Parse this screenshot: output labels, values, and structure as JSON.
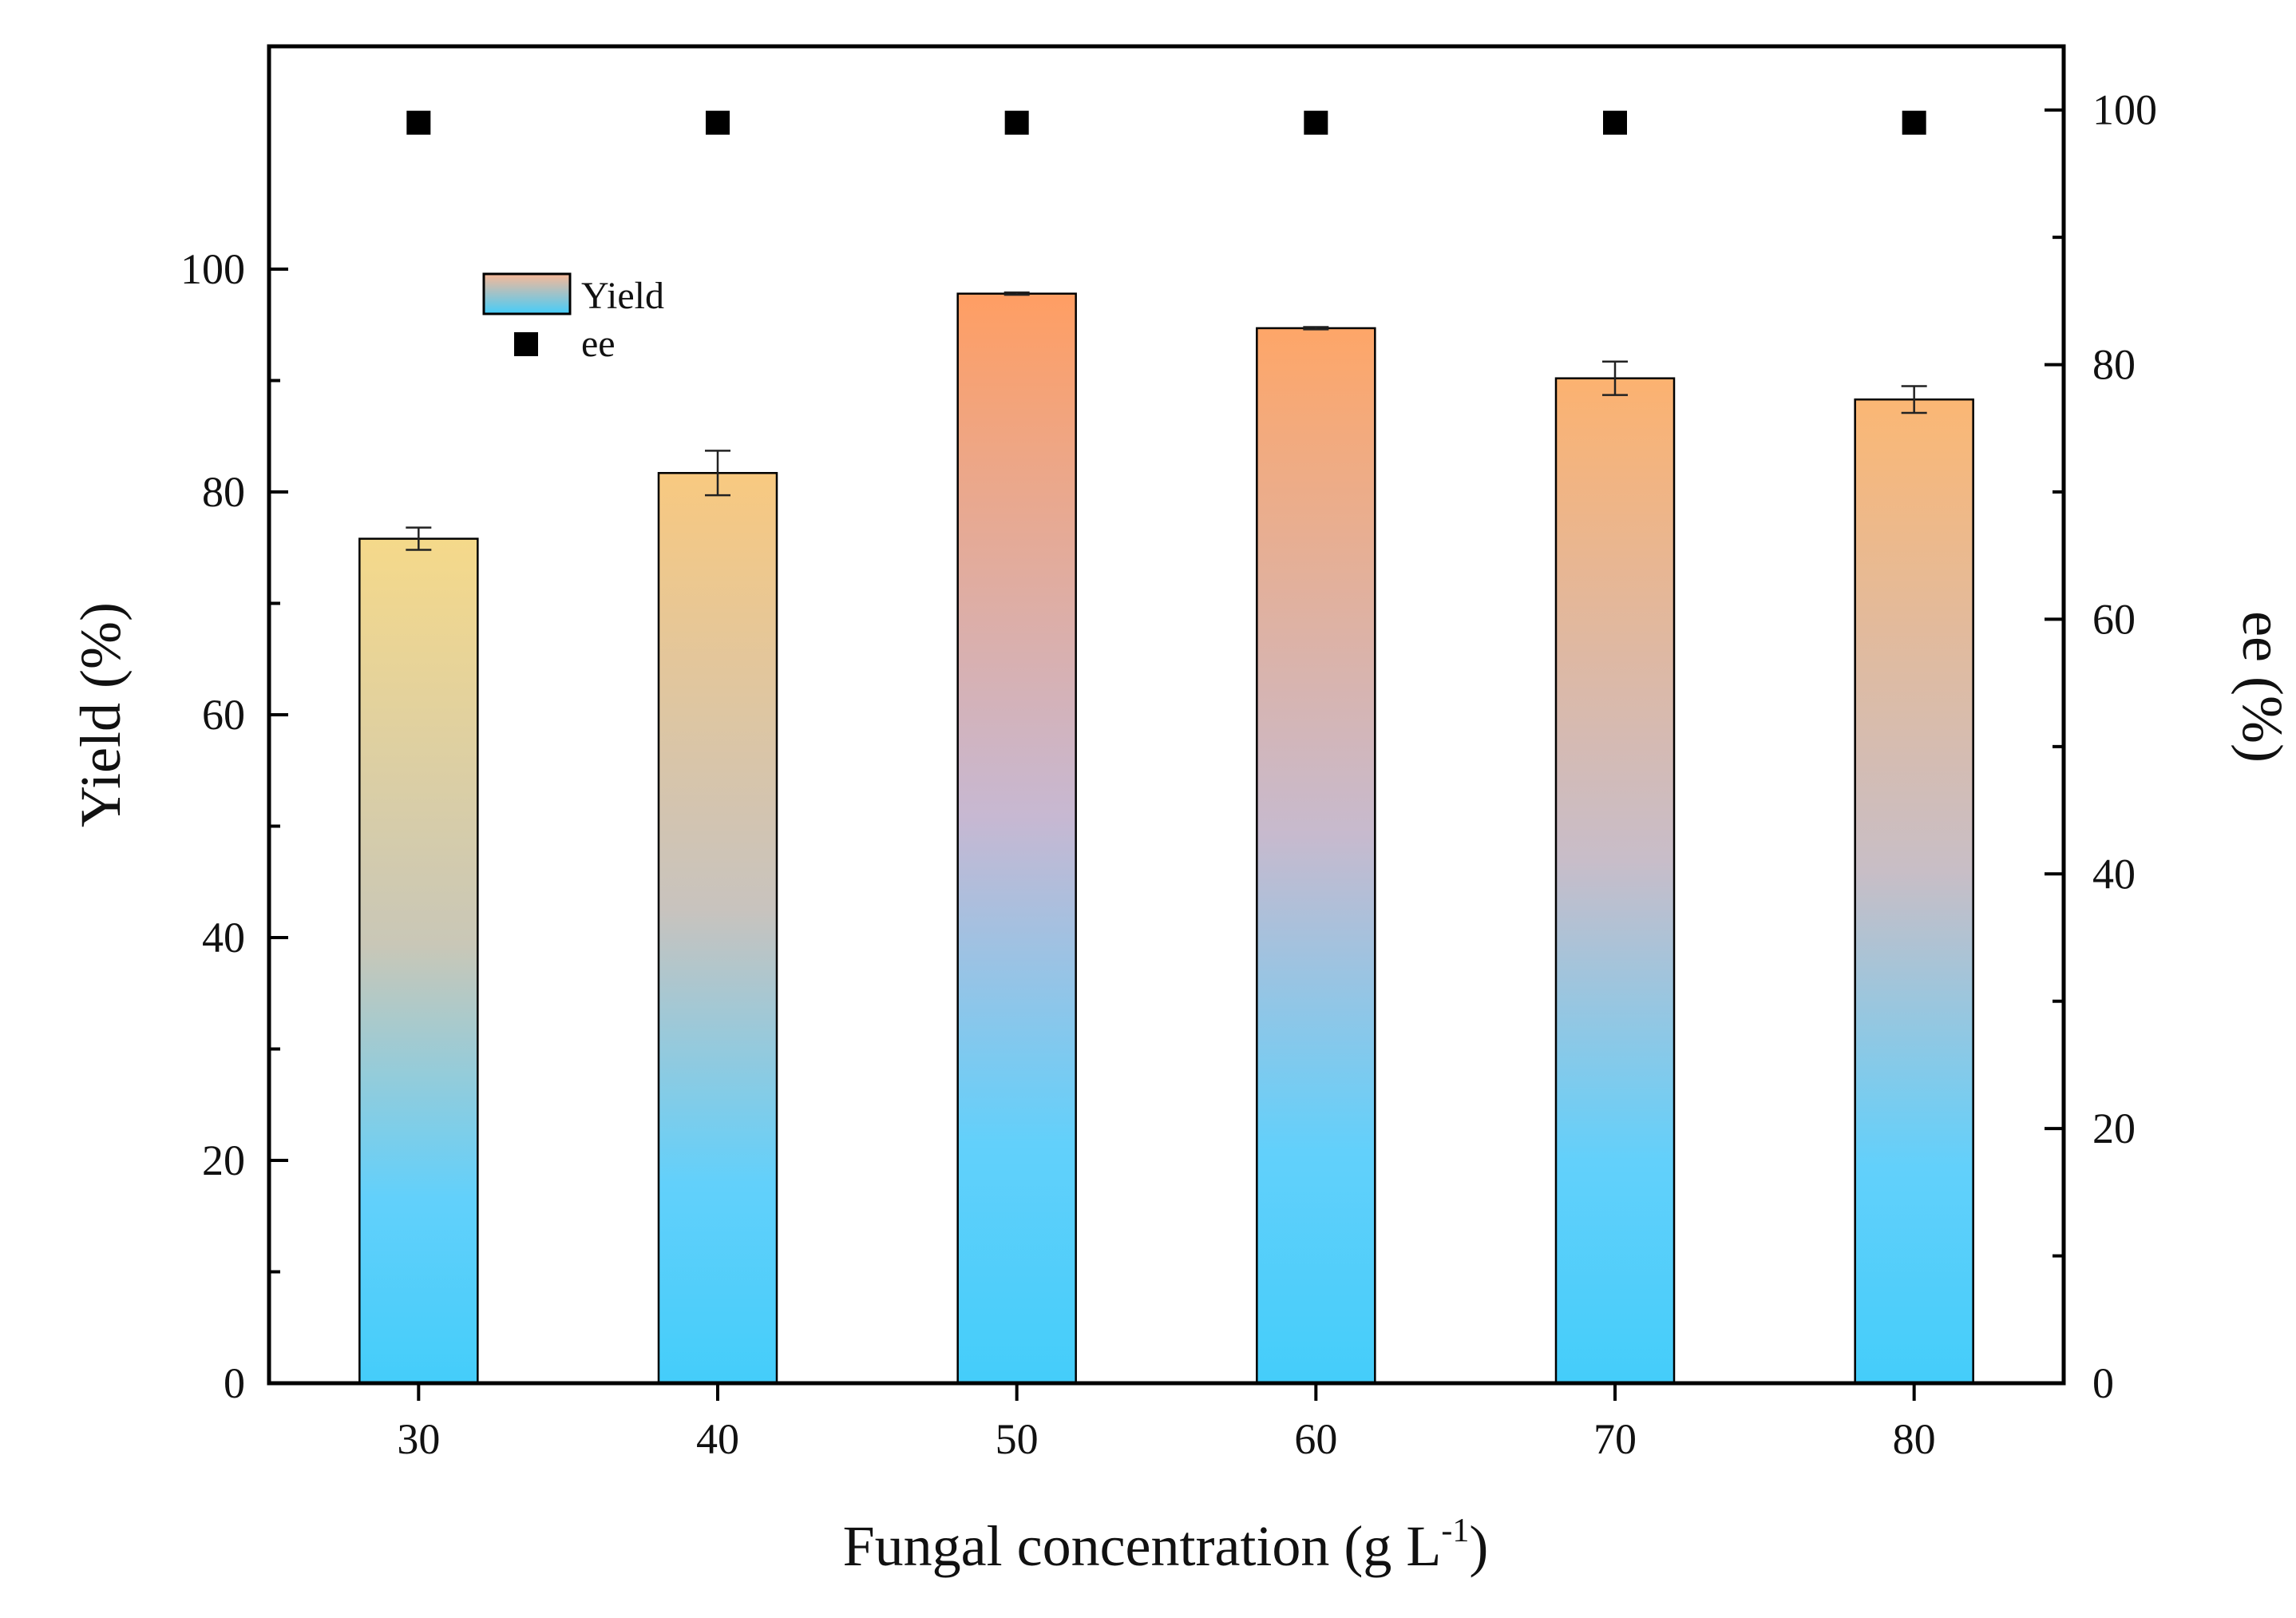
{
  "chart_data": {
    "type": "bar",
    "xlabel": "Fungal concentration (g L",
    "xlabel_superscript": "-1",
    "xlabel_suffix": ")",
    "categories": [
      "30",
      "40",
      "50",
      "60",
      "70",
      "80"
    ],
    "series": [
      {
        "name": "Yield",
        "axis": "left",
        "kind": "bar",
        "values": [
          75.8,
          81.7,
          97.8,
          94.7,
          90.2,
          88.3
        ],
        "errors": [
          1.0,
          2.0,
          0.1,
          0.1,
          1.5,
          1.2
        ]
      },
      {
        "name": "ee",
        "axis": "right",
        "kind": "scatter",
        "values": [
          99,
          99,
          99,
          99,
          99,
          99
        ]
      }
    ],
    "y_left": {
      "label": "Yield (%)",
      "ylim": [
        0,
        120
      ],
      "ticks": [
        0,
        20,
        40,
        60,
        80,
        100
      ]
    },
    "y_right": {
      "label": "ee (%)",
      "ylim": [
        0,
        105
      ],
      "ticks": [
        0,
        20,
        40,
        60,
        80,
        100
      ]
    },
    "legend": {
      "placement": "top-left",
      "entries": [
        "Yield",
        "ee"
      ]
    },
    "colors": {
      "bar_bottom": "#44cdfa",
      "bar_mid": "#c7b8d2",
      "bar_top_low": "#f5d98a",
      "bar_top_high": "#ff9e63",
      "marker": "#000000",
      "axis": "#000000"
    }
  }
}
